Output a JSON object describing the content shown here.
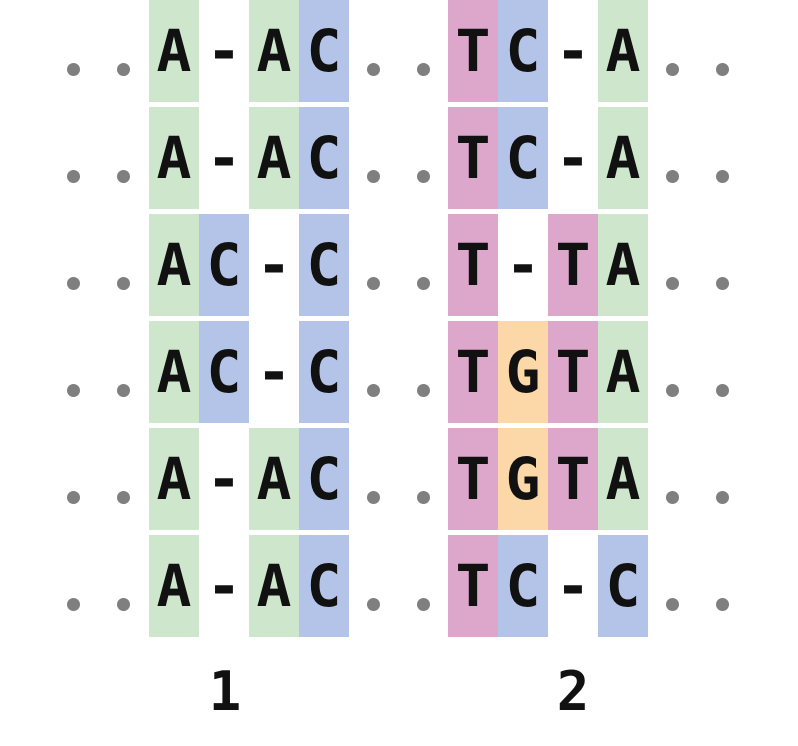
{
  "colors": {
    "A": "#cde6cc",
    "C": "#b3c4e8",
    "T": "#dda6cb",
    "G": "#fcd7a7",
    "-": "#ffffff",
    "dot": "#7f7f7f",
    "text": "#111111"
  },
  "blocks": [
    {
      "label": "1",
      "rows": [
        [
          "A",
          "-",
          "A",
          "C"
        ],
        [
          "A",
          "-",
          "A",
          "C"
        ],
        [
          "A",
          "C",
          "-",
          "C"
        ],
        [
          "A",
          "C",
          "-",
          "C"
        ],
        [
          "A",
          "-",
          "A",
          "C"
        ],
        [
          "A",
          "-",
          "A",
          "C"
        ]
      ]
    },
    {
      "label": "2",
      "rows": [
        [
          "T",
          "C",
          "-",
          "A"
        ],
        [
          "T",
          "C",
          "-",
          "A"
        ],
        [
          "T",
          "-",
          "T",
          "A"
        ],
        [
          "T",
          "G",
          "T",
          "A"
        ],
        [
          "T",
          "G",
          "T",
          "A"
        ],
        [
          "T",
          "C",
          "-",
          "C"
        ]
      ]
    }
  ]
}
